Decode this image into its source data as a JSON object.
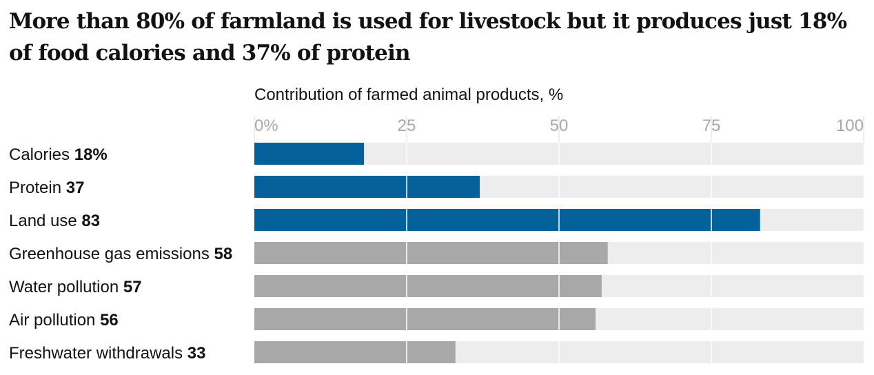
{
  "title": "More than 80% of farmland is used for livestock but it produces just 18% of food calories and 37% of protein",
  "chart_data": {
    "type": "bar",
    "orientation": "horizontal",
    "xlabel": "Contribution of farmed animal products, %",
    "xlim": [
      0,
      100
    ],
    "ticks": [
      0,
      25,
      50,
      75,
      100
    ],
    "tick_labels": [
      "0%",
      "25",
      "50",
      "75",
      "100"
    ],
    "grid": true,
    "categories": [
      "Calories",
      "Protein",
      "Land use",
      "Greenhouse gas emissions",
      "Water pollution",
      "Air pollution",
      "Freshwater withdrawals"
    ],
    "values": [
      18,
      37,
      83,
      58,
      57,
      56,
      33
    ],
    "value_labels": [
      "18%",
      "37",
      "83",
      "58",
      "57",
      "56",
      "33"
    ],
    "highlight": [
      true,
      true,
      true,
      false,
      false,
      false,
      false
    ],
    "colors": {
      "highlight": "#05619a",
      "muted": "#a8a8a8",
      "background_track": "#ededed",
      "gridline": "#ffffff"
    }
  }
}
